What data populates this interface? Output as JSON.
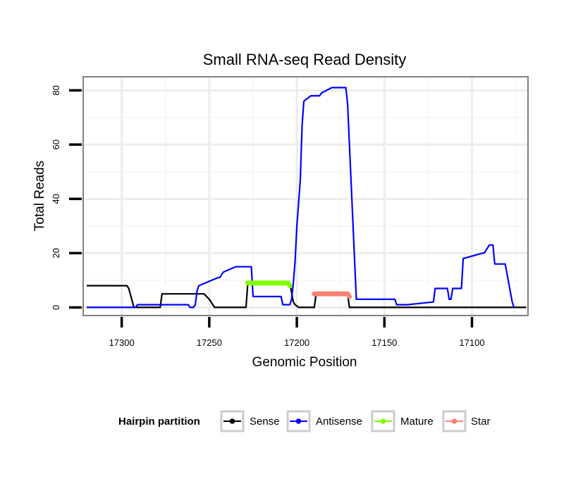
{
  "chart_data": {
    "type": "line",
    "title": "Small RNA-seq Read Density",
    "xlabel": "Genomic Position",
    "ylabel": "Total Reads",
    "xlim": [
      17322,
      17068
    ],
    "ylim": [
      -3,
      85
    ],
    "x_reversed": true,
    "grid": true,
    "x_ticks": [
      17300,
      17250,
      17200,
      17150,
      17100
    ],
    "x_tick_labels": [
      "17300",
      "17250",
      "17200",
      "17150",
      "17100"
    ],
    "y_ticks": [
      0,
      20,
      40,
      60,
      80
    ],
    "y_tick_labels": [
      "0",
      "20",
      "40",
      "60",
      "80"
    ],
    "legend": {
      "title": "Hairpin partition",
      "position": "bottom",
      "entries": [
        {
          "label": "Sense",
          "color": "#000000"
        },
        {
          "label": "Antisense",
          "color": "#0000ff"
        },
        {
          "label": "Mature",
          "color": "#7fff00"
        },
        {
          "label": "Star",
          "color": "#fa8072"
        }
      ]
    },
    "series": [
      {
        "name": "Sense",
        "color": "#000000",
        "style": "line",
        "x": [
          17320,
          17297,
          17296,
          17293,
          17278,
          17277,
          17269,
          17253,
          17250,
          17247,
          17229,
          17228,
          17204,
          17202,
          17201,
          17199,
          17190,
          17189,
          17171,
          17170,
          17069
        ],
        "y": [
          8,
          8,
          7,
          0,
          0,
          5,
          5,
          5,
          3,
          0,
          0,
          9,
          9,
          2,
          1,
          0,
          0,
          5,
          5,
          0,
          0
        ]
      },
      {
        "name": "Antisense",
        "color": "#0000ff",
        "style": "line",
        "x": [
          17320,
          17292,
          17291,
          17289,
          17275,
          17272,
          17262,
          17261,
          17259,
          17258,
          17257,
          17256,
          17245,
          17244,
          17243,
          17242,
          17235,
          17234,
          17226,
          17225,
          17218,
          17217,
          17209,
          17208,
          17207,
          17206,
          17205,
          17204,
          17203,
          17202,
          17201,
          17200,
          17198,
          17197,
          17196,
          17192,
          17190,
          17187,
          17186,
          17180,
          17179,
          17172,
          17171,
          17166,
          17165,
          17158,
          17157,
          17152,
          17151,
          17150,
          17144,
          17143,
          17142,
          17141,
          17137,
          17122,
          17121,
          17120,
          17118,
          17114,
          17113,
          17112,
          17111,
          17110,
          17109,
          17108,
          17107,
          17106,
          17105,
          17094,
          17093,
          17090,
          17088,
          17087,
          17085,
          17084,
          17082,
          17081,
          17077,
          17076
        ],
        "y": [
          0,
          0,
          1,
          1,
          1,
          1,
          1,
          0,
          0,
          1,
          6,
          8,
          11,
          11,
          12,
          13,
          15,
          15,
          15,
          4,
          4,
          4,
          4,
          1,
          1,
          1,
          1,
          1,
          3,
          9,
          17,
          30,
          47,
          67,
          76,
          78,
          78,
          78,
          79,
          81,
          81,
          81,
          75,
          3,
          3,
          3,
          3,
          3,
          3,
          3,
          3,
          1,
          1,
          1,
          1,
          2,
          7,
          7,
          7,
          7,
          3,
          3,
          7,
          7,
          7,
          7,
          7,
          7,
          18,
          20,
          20,
          23,
          23,
          16,
          16,
          16,
          16,
          16,
          2,
          0
        ]
      },
      {
        "name": "Mature",
        "color": "#7fff00",
        "style": "points",
        "x": [
          17228,
          17227,
          17226,
          17225,
          17224,
          17223,
          17222,
          17221,
          17220,
          17219,
          17218,
          17217,
          17216,
          17215,
          17214,
          17213,
          17212,
          17211,
          17210,
          17209,
          17208,
          17207,
          17206,
          17205,
          17204
        ],
        "y": [
          9,
          9,
          9,
          9,
          9,
          9,
          9,
          9,
          9,
          9,
          9,
          9,
          9,
          9,
          9,
          9,
          9,
          9,
          9,
          9,
          9,
          9,
          9,
          9,
          8
        ]
      },
      {
        "name": "Star",
        "color": "#fa8072",
        "style": "points",
        "x": [
          17190,
          17189,
          17188,
          17187,
          17186,
          17185,
          17184,
          17183,
          17182,
          17181,
          17180,
          17179,
          17178,
          17177,
          17176,
          17175,
          17174,
          17173,
          17172,
          17171,
          17170
        ],
        "y": [
          5,
          5,
          5,
          5,
          5,
          5,
          5,
          5,
          5,
          5,
          5,
          5,
          5,
          5,
          5,
          5,
          5,
          5,
          5,
          5,
          4
        ]
      }
    ]
  }
}
